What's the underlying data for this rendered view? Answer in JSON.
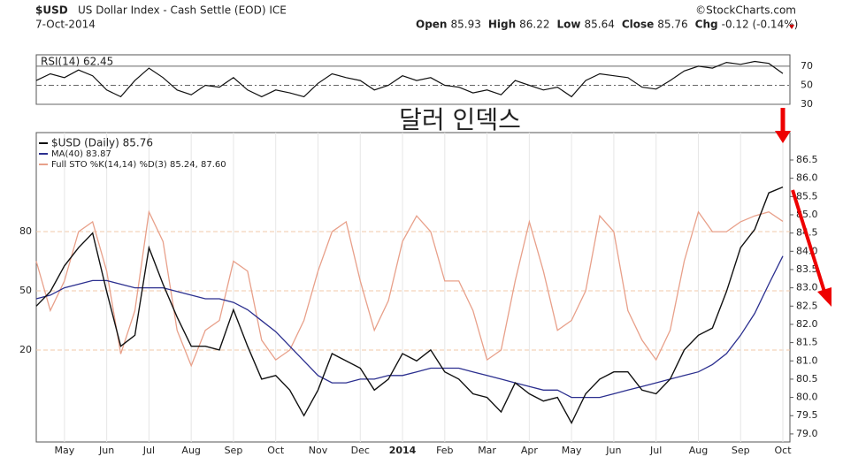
{
  "header": {
    "symbol": "$USD",
    "name": "US Dollar Index - Cash Settle (EOD) ICE",
    "date": "7-Oct-2014",
    "source": "©StockCharts.com",
    "quote": [
      {
        "label": "Open",
        "value": 85.93
      },
      {
        "label": "High",
        "value": 86.22
      },
      {
        "label": "Low",
        "value": 85.64
      },
      {
        "label": "Close",
        "value": 85.76
      }
    ],
    "change_label": "Chg",
    "change": "-0.12 (-0.14%)"
  },
  "chart_data": [
    {
      "type": "line",
      "title": "RSI(14) 62.45",
      "color": "#111",
      "values": [
        55,
        62,
        58,
        66,
        60,
        45,
        38,
        55,
        68,
        58,
        45,
        40,
        50,
        48,
        58,
        45,
        38,
        45,
        42,
        38,
        52,
        62,
        58,
        55,
        45,
        50,
        60,
        55,
        58,
        50,
        48,
        42,
        45,
        40,
        55,
        50,
        45,
        48,
        38,
        55,
        62,
        60,
        58,
        48,
        46,
        55,
        65,
        70,
        68,
        74,
        72,
        75,
        73,
        62.45
      ],
      "ylim": [
        30,
        82
      ],
      "yticks": [
        30,
        50,
        70
      ]
    },
    {
      "type": "line",
      "annotation": "달러 인덱스",
      "categories": [
        null,
        null,
        "May",
        null,
        null,
        "Jun",
        null,
        null,
        "Jul",
        null,
        null,
        "Aug",
        null,
        null,
        "Sep",
        null,
        null,
        "Oct",
        null,
        null,
        "Nov",
        null,
        null,
        "Dec",
        null,
        null,
        "2014",
        null,
        null,
        "Feb",
        null,
        null,
        "Mar",
        null,
        null,
        "Apr",
        null,
        null,
        "May",
        null,
        null,
        "Jun",
        null,
        null,
        "Jul",
        null,
        null,
        "Aug",
        null,
        null,
        "Sep",
        null,
        null,
        "Oct"
      ],
      "series": [
        {
          "name": "$USD (Daily) 85.76",
          "color": "#111",
          "values": [
            82.5,
            82.9,
            83.6,
            84.1,
            84.5,
            82.9,
            81.4,
            81.7,
            84.1,
            83.1,
            82.2,
            81.4,
            81.4,
            81.3,
            82.4,
            81.4,
            80.5,
            80.6,
            80.2,
            79.5,
            80.2,
            81.2,
            81.0,
            80.8,
            80.2,
            80.5,
            81.2,
            81.0,
            81.3,
            80.7,
            80.5,
            80.1,
            80.0,
            79.6,
            80.4,
            80.1,
            79.9,
            80.0,
            79.3,
            80.1,
            80.5,
            80.7,
            80.7,
            80.2,
            80.1,
            80.5,
            81.3,
            81.7,
            81.9,
            82.9,
            84.1,
            84.6,
            85.6,
            85.76
          ]
        },
        {
          "name": "MA(40) 83.87",
          "color": "#2b2f8f",
          "values": [
            82.7,
            82.8,
            83.0,
            83.1,
            83.2,
            83.2,
            83.1,
            83.0,
            83.0,
            83.0,
            82.9,
            82.8,
            82.7,
            82.7,
            82.6,
            82.4,
            82.1,
            81.8,
            81.4,
            81.0,
            80.6,
            80.4,
            80.4,
            80.5,
            80.5,
            80.6,
            80.6,
            80.7,
            80.8,
            80.8,
            80.8,
            80.7,
            80.6,
            80.5,
            80.4,
            80.3,
            80.2,
            80.2,
            80.0,
            80.0,
            80.0,
            80.1,
            80.2,
            80.3,
            80.4,
            80.5,
            80.6,
            80.7,
            80.9,
            81.2,
            81.7,
            82.3,
            83.1,
            83.87
          ]
        },
        {
          "name": "Full STO %K(14,14) %D(3) 85.24, 87.60",
          "color": "#e8a08a",
          "axis": "y2",
          "values": [
            65,
            40,
            55,
            80,
            85,
            60,
            18,
            40,
            90,
            75,
            30,
            12,
            30,
            35,
            65,
            60,
            25,
            15,
            20,
            35,
            60,
            80,
            85,
            55,
            30,
            45,
            75,
            88,
            80,
            55,
            55,
            40,
            15,
            20,
            55,
            85,
            60,
            30,
            35,
            50,
            88,
            80,
            40,
            25,
            15,
            30,
            65,
            90,
            80,
            80,
            85,
            88,
            90,
            85.24
          ]
        }
      ],
      "ylim": [
        78.78,
        87.25
      ],
      "yticks": [
        {
          "value": 79,
          "label": "79.0"
        },
        79.5,
        {
          "value": 80,
          "label": "80.0"
        },
        80.5,
        {
          "value": 81,
          "label": "81.0"
        },
        81.5,
        {
          "value": 82,
          "label": "82.0"
        },
        82.5,
        {
          "value": 83,
          "label": "83.0"
        },
        83.5,
        {
          "value": 84,
          "label": "84.0"
        },
        84.5,
        {
          "value": 85,
          "label": "85.0"
        },
        85.5,
        {
          "value": 86,
          "label": "86.0"
        },
        86.5
      ],
      "y2lim": [
        -26.6,
        130.2
      ],
      "y2ticks": [
        20,
        50,
        80
      ]
    }
  ]
}
